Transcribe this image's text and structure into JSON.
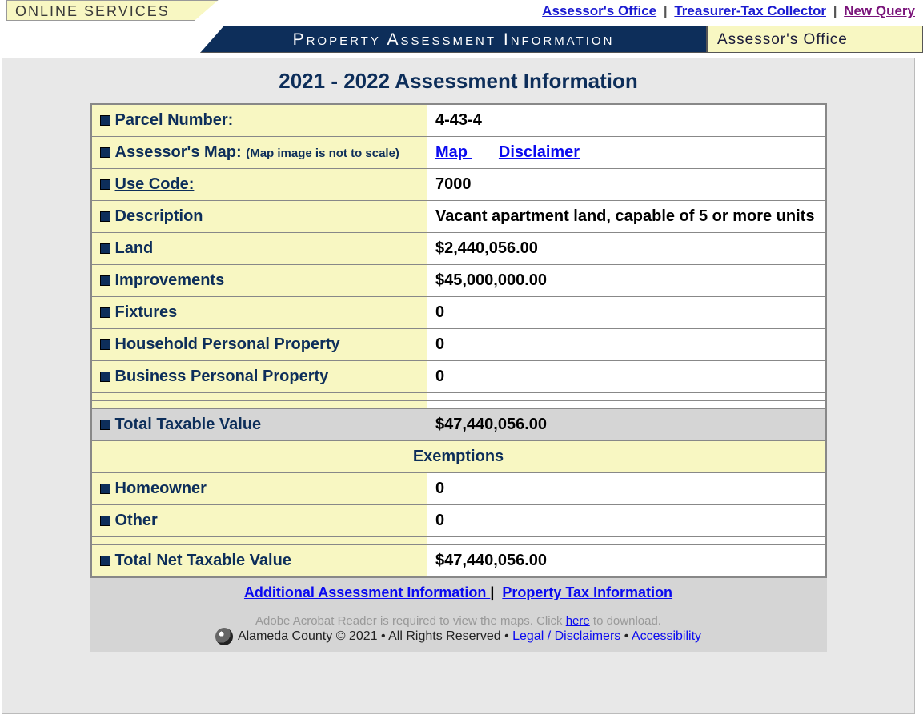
{
  "header": {
    "online_services": "ONLINE SERVICES",
    "links": {
      "assessor": "Assessor's Office",
      "treasurer": "Treasurer-Tax Collector",
      "new_query": "New Query"
    },
    "banner_main": "Property Assessment Information",
    "banner_right": "Assessor's Office"
  },
  "title": "2021 - 2022 Assessment Information",
  "rows": {
    "parcel_label": "Parcel Number:",
    "parcel_value": "4-43-4",
    "map_label": "Assessor's Map:",
    "map_sub": "(Map image is not to scale)",
    "map_link": "Map ",
    "disclaimer_link": "Disclaimer ",
    "usecode_label": "Use Code:",
    "usecode_value": "7000",
    "desc_label": "Description",
    "desc_value": "Vacant apartment land, capable of 5 or more units",
    "land_label": "Land",
    "land_value": "$2,440,056.00",
    "improvements_label": "Improvements",
    "improvements_value": "$45,000,000.00",
    "fixtures_label": "Fixtures",
    "fixtures_value": "0",
    "hpp_label": "Household Personal Property",
    "hpp_value": "0",
    "bpp_label": "Business Personal Property",
    "bpp_value": "0",
    "total_taxable_label": "Total Taxable Value",
    "total_taxable_value": "$47,440,056.00",
    "exemptions_header": "Exemptions",
    "homeowner_label": "Homeowner",
    "homeowner_value": "0",
    "other_label": "Other",
    "other_value": "0",
    "net_label": "Total Net Taxable Value",
    "net_value": "$47,440,056.00"
  },
  "bottom": {
    "addl_info": "Additional Assessment Information ",
    "prop_tax": "Property Tax Information"
  },
  "footer": {
    "adobe_pre": "Adobe Acrobat Reader is required to view the maps.   Click ",
    "adobe_here": "here",
    "adobe_post": " to download.",
    "county": "Alameda County © 2021 • All Rights Reserved • ",
    "legal": "Legal / Disclaimers",
    "sep": " • ",
    "access": "Accessibility"
  }
}
